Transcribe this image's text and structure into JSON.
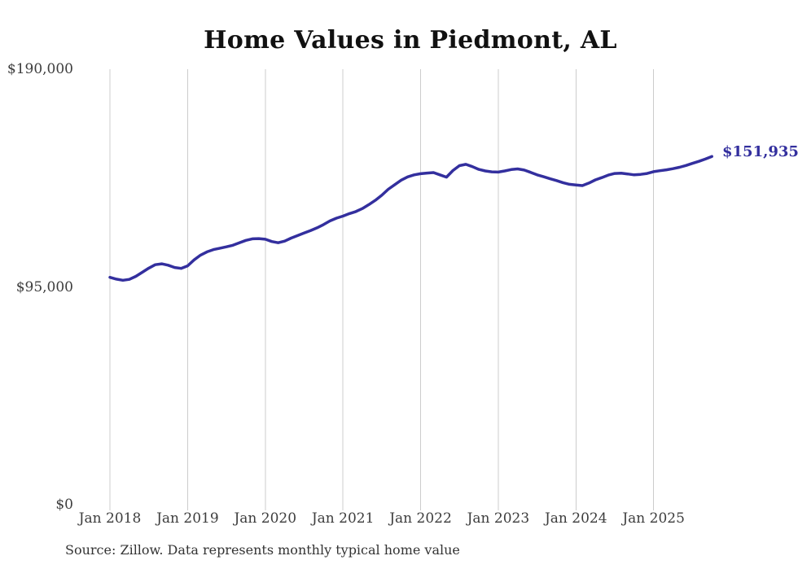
{
  "page": {
    "background": "#ffffff"
  },
  "chart_data": {
    "type": "line",
    "title": "Home Values in Piedmont, AL",
    "source_note": "Source: Zillow. Data represents monthly typical home value",
    "end_label": "$151,935",
    "final_value": 151935,
    "unit": "USD",
    "ylim": [
      0,
      190000
    ],
    "grid": "vertical-only",
    "legend": "none",
    "line_color": "#332f9e",
    "grid_color": "#cccccc",
    "y_ticks": [
      {
        "label": "$190,000",
        "value": 190000
      },
      {
        "label": "$95,000",
        "value": 95000
      },
      {
        "label": "$0",
        "value": 0
      }
    ],
    "x_ticks": [
      {
        "label": "Jan 2018",
        "month_index": 0
      },
      {
        "label": "Jan 2019",
        "month_index": 12
      },
      {
        "label": "Jan 2020",
        "month_index": 24
      },
      {
        "label": "Jan 2021",
        "month_index": 36
      },
      {
        "label": "Jan 2022",
        "month_index": 48
      },
      {
        "label": "Jan 2023",
        "month_index": 60
      },
      {
        "label": "Jan 2024",
        "month_index": 72
      },
      {
        "label": "Jan 2025",
        "month_index": 84
      }
    ],
    "x": [
      "2018-01",
      "2018-02",
      "2018-03",
      "2018-04",
      "2018-05",
      "2018-06",
      "2018-07",
      "2018-08",
      "2018-09",
      "2018-10",
      "2018-11",
      "2018-12",
      "2019-01",
      "2019-02",
      "2019-03",
      "2019-04",
      "2019-05",
      "2019-06",
      "2019-07",
      "2019-08",
      "2019-09",
      "2019-10",
      "2019-11",
      "2019-12",
      "2020-01",
      "2020-02",
      "2020-03",
      "2020-04",
      "2020-05",
      "2020-06",
      "2020-07",
      "2020-08",
      "2020-09",
      "2020-10",
      "2020-11",
      "2020-12",
      "2021-01",
      "2021-02",
      "2021-03",
      "2021-04",
      "2021-05",
      "2021-06",
      "2021-07",
      "2021-08",
      "2021-09",
      "2021-10",
      "2021-11",
      "2021-12",
      "2022-01",
      "2022-02",
      "2022-03",
      "2022-04",
      "2022-05",
      "2022-06",
      "2022-07",
      "2022-08",
      "2022-09",
      "2022-10",
      "2022-11",
      "2022-12",
      "2023-01",
      "2023-02",
      "2023-03",
      "2023-04",
      "2023-05",
      "2023-06",
      "2023-07",
      "2023-08",
      "2023-09",
      "2023-10",
      "2023-11",
      "2023-12",
      "2024-01",
      "2024-02",
      "2024-03",
      "2024-04",
      "2024-05",
      "2024-06",
      "2024-07",
      "2024-08",
      "2024-09",
      "2024-10",
      "2024-11",
      "2024-12",
      "2025-01",
      "2025-02",
      "2025-03",
      "2025-04",
      "2025-05",
      "2025-06",
      "2025-07",
      "2025-08",
      "2025-09",
      "2025-10"
    ],
    "series": [
      {
        "name": "Typical home value",
        "values": [
          99200,
          98400,
          97900,
          98300,
          99600,
          101400,
          103200,
          104700,
          105100,
          104500,
          103500,
          103100,
          104200,
          106800,
          108900,
          110300,
          111300,
          111900,
          112500,
          113200,
          114300,
          115300,
          116000,
          116100,
          115800,
          114800,
          114300,
          115000,
          116300,
          117400,
          118500,
          119600,
          120800,
          122200,
          123800,
          125000,
          125900,
          127000,
          127900,
          129200,
          130900,
          132800,
          135000,
          137600,
          139600,
          141600,
          143000,
          143900,
          144400,
          144700,
          144900,
          143900,
          142900,
          145800,
          147900,
          148500,
          147500,
          146300,
          145600,
          145200,
          145100,
          145600,
          146200,
          146500,
          146000,
          145000,
          143900,
          143100,
          142200,
          141400,
          140500,
          139800,
          139500,
          139200,
          140300,
          141700,
          142700,
          143800,
          144500,
          144600,
          144300,
          143900,
          144100,
          144500,
          145300,
          145700,
          146100,
          146600,
          147200,
          148000,
          148900,
          149800,
          150800,
          151935
        ]
      }
    ]
  }
}
